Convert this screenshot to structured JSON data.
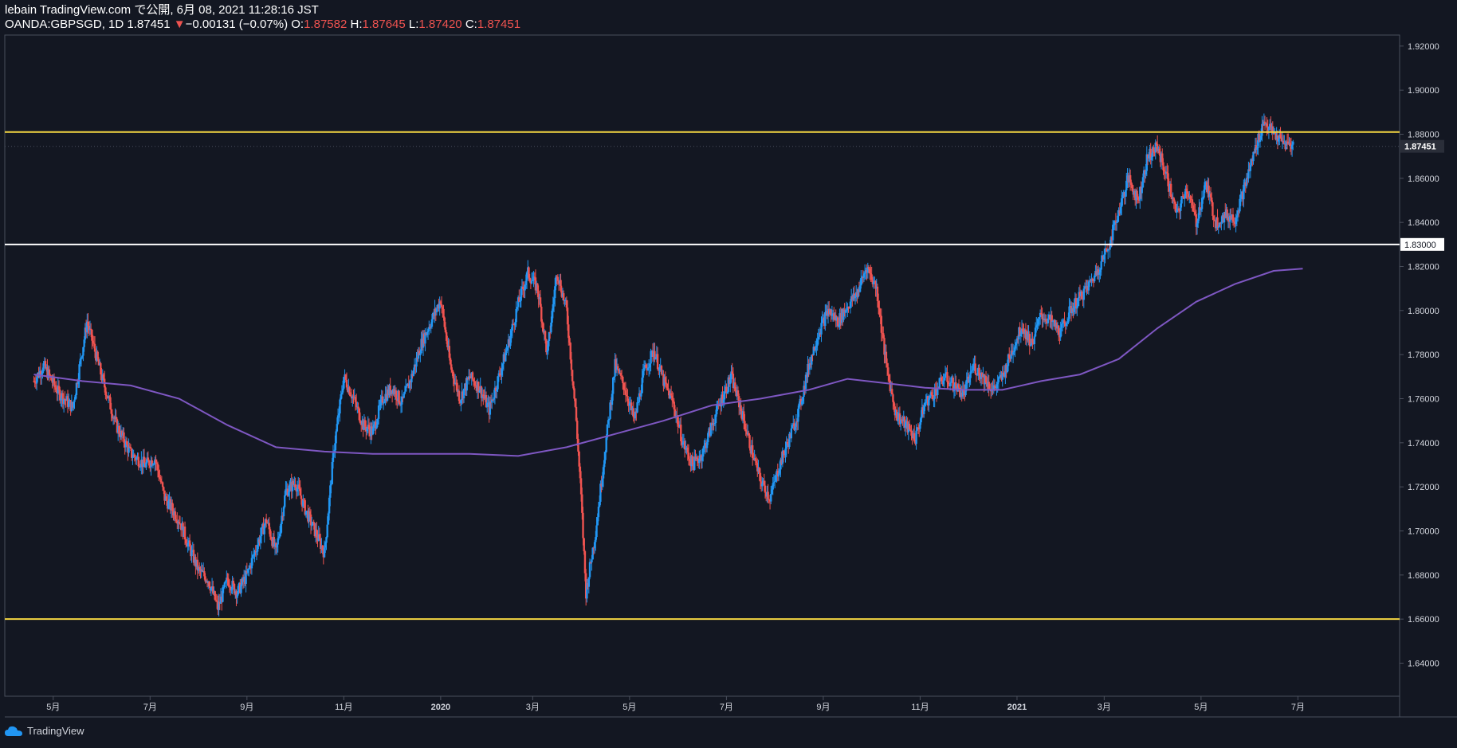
{
  "header": {
    "line1": "lebain TradingView.com で公開, 6月 08, 2021 11:28:16 JST",
    "symbol": "OANDA:GBPSGD, 1D",
    "last": "1.87451",
    "change_arrow": "▼",
    "change": "−0.00131 (−0.07%)",
    "o_label": "O:",
    "o_value": "1.87582",
    "h_label": "H:",
    "h_value": "1.87645",
    "l_label": "L:",
    "l_value": "1.87420",
    "c_label": "C:",
    "c_value": "1.87451"
  },
  "footer": {
    "brand": "TradingView"
  },
  "colors": {
    "background": "#131722",
    "up": "#2196f3",
    "down": "#ef5350",
    "ma": "#7e57c2",
    "level_yellow": "#f5d742",
    "level_white": "#ffffff",
    "grid_text": "#d1d4dc"
  },
  "chart_data": {
    "type": "candlestick",
    "title": "OANDA:GBPSGD, 1D",
    "ylim": [
      1.625,
      1.925
    ],
    "y_ticks": [
      "1.92000",
      "1.90000",
      "1.88000",
      "1.86000",
      "1.84000",
      "1.82000",
      "1.80000",
      "1.78000",
      "1.76000",
      "1.74000",
      "1.72000",
      "1.70000",
      "1.68000",
      "1.66000",
      "1.64000"
    ],
    "x_ticks": [
      {
        "label": "5月",
        "t": 4
      },
      {
        "label": "7月",
        "t": 24
      },
      {
        "label": "9月",
        "t": 44
      },
      {
        "label": "11月",
        "t": 64
      },
      {
        "label": "2020",
        "t": 84
      },
      {
        "label": "3月",
        "t": 103
      },
      {
        "label": "5月",
        "t": 123
      },
      {
        "label": "7月",
        "t": 143
      },
      {
        "label": "9月",
        "t": 163
      },
      {
        "label": "11月",
        "t": 183
      },
      {
        "label": "2021",
        "t": 203
      },
      {
        "label": "3月",
        "t": 221
      },
      {
        "label": "5月",
        "t": 241
      },
      {
        "label": "7月",
        "t": 261
      }
    ],
    "x_range": [
      -6,
      282
    ],
    "last_price_label": "1.87451",
    "horizontal_levels": [
      {
        "price": 1.881,
        "color": "#f5d742",
        "label": ""
      },
      {
        "price": 1.83,
        "color": "#ffffff",
        "label": "1.83000"
      },
      {
        "price": 1.66,
        "color": "#f5d742",
        "label": ""
      }
    ],
    "price_path": [
      [
        0,
        1.768
      ],
      [
        2,
        1.775
      ],
      [
        5,
        1.763
      ],
      [
        8,
        1.756
      ],
      [
        11,
        1.795
      ],
      [
        14,
        1.77
      ],
      [
        17,
        1.748
      ],
      [
        20,
        1.735
      ],
      [
        23,
        1.73
      ],
      [
        25,
        1.733
      ],
      [
        27,
        1.715
      ],
      [
        30,
        1.705
      ],
      [
        32,
        1.693
      ],
      [
        34,
        1.682
      ],
      [
        36,
        1.678
      ],
      [
        38,
        1.665
      ],
      [
        40,
        1.678
      ],
      [
        42,
        1.672
      ],
      [
        44,
        1.68
      ],
      [
        46,
        1.693
      ],
      [
        48,
        1.705
      ],
      [
        50,
        1.69
      ],
      [
        52,
        1.718
      ],
      [
        54,
        1.722
      ],
      [
        56,
        1.71
      ],
      [
        58,
        1.7
      ],
      [
        60,
        1.69
      ],
      [
        62,
        1.738
      ],
      [
        64,
        1.77
      ],
      [
        66,
        1.76
      ],
      [
        68,
        1.748
      ],
      [
        70,
        1.745
      ],
      [
        72,
        1.76
      ],
      [
        74,
        1.765
      ],
      [
        76,
        1.758
      ],
      [
        78,
        1.77
      ],
      [
        80,
        1.785
      ],
      [
        82,
        1.795
      ],
      [
        84,
        1.805
      ],
      [
        86,
        1.775
      ],
      [
        88,
        1.76
      ],
      [
        90,
        1.77
      ],
      [
        92,
        1.765
      ],
      [
        94,
        1.755
      ],
      [
        96,
        1.77
      ],
      [
        98,
        1.785
      ],
      [
        100,
        1.803
      ],
      [
        102,
        1.817
      ],
      [
        104,
        1.81
      ],
      [
        106,
        1.78
      ],
      [
        108,
        1.818
      ],
      [
        110,
        1.8
      ],
      [
        112,
        1.75
      ],
      [
        113,
        1.715
      ],
      [
        114,
        1.672
      ],
      [
        116,
        1.7
      ],
      [
        118,
        1.738
      ],
      [
        120,
        1.775
      ],
      [
        122,
        1.765
      ],
      [
        124,
        1.75
      ],
      [
        126,
        1.772
      ],
      [
        128,
        1.782
      ],
      [
        130,
        1.768
      ],
      [
        132,
        1.758
      ],
      [
        134,
        1.74
      ],
      [
        136,
        1.73
      ],
      [
        138,
        1.735
      ],
      [
        140,
        1.748
      ],
      [
        142,
        1.76
      ],
      [
        144,
        1.77
      ],
      [
        146,
        1.755
      ],
      [
        148,
        1.738
      ],
      [
        150,
        1.723
      ],
      [
        152,
        1.715
      ],
      [
        154,
        1.73
      ],
      [
        156,
        1.742
      ],
      [
        158,
        1.755
      ],
      [
        160,
        1.775
      ],
      [
        162,
        1.79
      ],
      [
        164,
        1.8
      ],
      [
        166,
        1.795
      ],
      [
        168,
        1.802
      ],
      [
        170,
        1.808
      ],
      [
        172,
        1.82
      ],
      [
        174,
        1.81
      ],
      [
        176,
        1.775
      ],
      [
        178,
        1.753
      ],
      [
        180,
        1.748
      ],
      [
        182,
        1.742
      ],
      [
        184,
        1.758
      ],
      [
        186,
        1.763
      ],
      [
        188,
        1.77
      ],
      [
        190,
        1.766
      ],
      [
        192,
        1.762
      ],
      [
        194,
        1.775
      ],
      [
        196,
        1.77
      ],
      [
        198,
        1.764
      ],
      [
        200,
        1.77
      ],
      [
        202,
        1.782
      ],
      [
        204,
        1.793
      ],
      [
        206,
        1.785
      ],
      [
        208,
        1.798
      ],
      [
        210,
        1.795
      ],
      [
        212,
        1.79
      ],
      [
        214,
        1.8
      ],
      [
        216,
        1.806
      ],
      [
        218,
        1.812
      ],
      [
        220,
        1.82
      ],
      [
        222,
        1.83
      ],
      [
        224,
        1.845
      ],
      [
        226,
        1.86
      ],
      [
        228,
        1.85
      ],
      [
        230,
        1.87
      ],
      [
        232,
        1.874
      ],
      [
        234,
        1.86
      ],
      [
        236,
        1.843
      ],
      [
        238,
        1.856
      ],
      [
        240,
        1.84
      ],
      [
        242,
        1.858
      ],
      [
        244,
        1.84
      ],
      [
        246,
        1.843
      ],
      [
        248,
        1.842
      ],
      [
        250,
        1.856
      ],
      [
        252,
        1.872
      ],
      [
        254,
        1.886
      ],
      [
        256,
        1.88
      ],
      [
        258,
        1.876
      ],
      [
        260,
        1.875
      ]
    ],
    "ma_series": {
      "name": "",
      "points": [
        [
          0,
          1.771
        ],
        [
          10,
          1.768
        ],
        [
          20,
          1.766
        ],
        [
          30,
          1.76
        ],
        [
          40,
          1.748
        ],
        [
          50,
          1.738
        ],
        [
          60,
          1.736
        ],
        [
          70,
          1.735
        ],
        [
          80,
          1.735
        ],
        [
          90,
          1.735
        ],
        [
          100,
          1.734
        ],
        [
          110,
          1.738
        ],
        [
          120,
          1.744
        ],
        [
          130,
          1.75
        ],
        [
          140,
          1.757
        ],
        [
          150,
          1.76
        ],
        [
          160,
          1.764
        ],
        [
          168,
          1.769
        ],
        [
          176,
          1.767
        ],
        [
          184,
          1.765
        ],
        [
          192,
          1.764
        ],
        [
          200,
          1.764
        ],
        [
          208,
          1.768
        ],
        [
          216,
          1.771
        ],
        [
          224,
          1.778
        ],
        [
          232,
          1.792
        ],
        [
          240,
          1.804
        ],
        [
          248,
          1.812
        ],
        [
          256,
          1.818
        ],
        [
          262,
          1.819
        ]
      ]
    }
  }
}
